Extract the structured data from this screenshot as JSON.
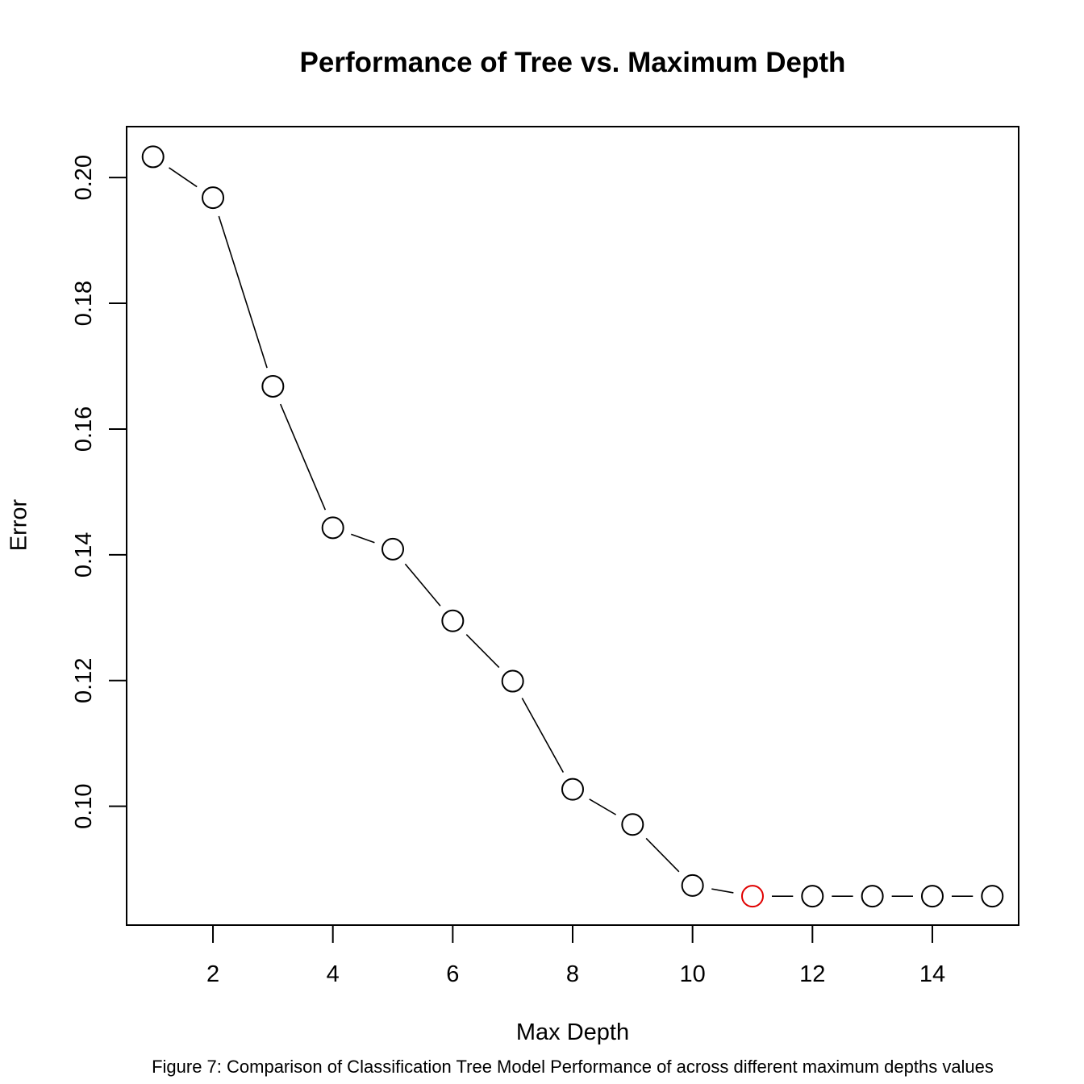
{
  "chart_data": {
    "type": "line",
    "title": "Performance of Tree vs. Maximum Depth",
    "xlabel": "Max Depth",
    "ylabel": "Error",
    "caption": "Figure 7: Comparison of Classification Tree Model Performance of across different maximum depths values",
    "x": [
      1,
      2,
      3,
      4,
      5,
      6,
      7,
      8,
      9,
      10,
      11,
      12,
      13,
      14,
      15
    ],
    "series": [
      {
        "values": [
          0.2033,
          0.1968,
          0.1668,
          0.1443,
          0.1409,
          0.1295,
          0.1199,
          0.1027,
          0.0971,
          0.0874,
          0.0857,
          0.0857,
          0.0857,
          0.0857,
          0.0857
        ]
      }
    ],
    "highlight_index": 10,
    "highlight_color": "#e00000",
    "marker": "open-circle",
    "xticks": [
      2,
      4,
      6,
      8,
      10,
      12,
      14
    ],
    "yticks": [
      0.1,
      0.12,
      0.14,
      0.16,
      0.18,
      0.2
    ],
    "xlim": [
      0.56,
      15.44
    ],
    "ylim": [
      0.0811,
      0.2081
    ],
    "grid": false
  }
}
